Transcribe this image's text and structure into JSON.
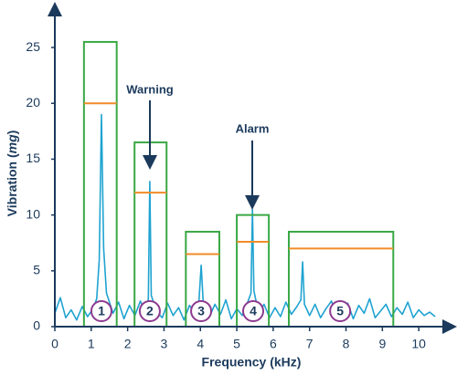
{
  "chart_data": {
    "type": "line",
    "x_label": "Frequency (kHz)",
    "y_label_parts": [
      "Vibration (",
      "mg",
      ")"
    ],
    "xlim": [
      0,
      10.85
    ],
    "ylim": [
      0,
      28.6
    ],
    "xticks": [
      0,
      1,
      2,
      3,
      4,
      5,
      6,
      7,
      8,
      9,
      10
    ],
    "yticks": [
      0,
      5,
      10,
      15,
      20,
      25
    ],
    "series": [
      {
        "color": "#1fa3d1",
        "x": [
          0,
          0.15,
          0.3,
          0.45,
          0.6,
          0.75,
          0.9,
          1.05,
          1.15,
          1.22,
          1.28,
          1.34,
          1.42,
          1.6,
          1.75,
          1.9,
          2.05,
          2.2,
          2.35,
          2.5,
          2.57,
          2.61,
          2.65,
          2.8,
          2.95,
          3.1,
          3.25,
          3.4,
          3.55,
          3.7,
          3.85,
          3.95,
          4.02,
          4.09,
          4.25,
          4.4,
          4.55,
          4.7,
          4.85,
          5.0,
          5.15,
          5.3,
          5.39,
          5.43,
          5.47,
          5.6,
          5.75,
          5.9,
          6.05,
          6.2,
          6.35,
          6.5,
          6.65,
          6.76,
          6.81,
          6.86,
          7.0,
          7.15,
          7.3,
          7.45,
          7.6,
          7.75,
          7.9,
          8.05,
          8.2,
          8.35,
          8.5,
          8.65,
          8.8,
          8.95,
          9.1,
          9.25,
          9.4,
          9.55,
          9.7,
          9.85,
          10.0,
          10.15,
          10.3,
          10.45
        ],
        "values": [
          1.2,
          2.6,
          0.8,
          1.5,
          0.6,
          1.8,
          0.9,
          1.6,
          2.5,
          6,
          19,
          7,
          3,
          1.2,
          2.2,
          0.7,
          1.9,
          1.0,
          2.3,
          1.1,
          2.5,
          13,
          2.8,
          1.3,
          0.8,
          2.1,
          1.0,
          1.7,
          0.6,
          1.9,
          1.2,
          1.8,
          5.5,
          1.5,
          0.9,
          2.0,
          1.1,
          2.4,
          0.7,
          1.6,
          1.0,
          2.2,
          3,
          10.5,
          3.2,
          1.2,
          2.0,
          0.8,
          1.7,
          0.9,
          2.2,
          1.1,
          1.8,
          2.4,
          5.8,
          2.0,
          1.0,
          2.0,
          0.8,
          1.6,
          2.3,
          0.9,
          1.5,
          2.1,
          0.7,
          1.9,
          1.2,
          2.5,
          0.8,
          1.4,
          2.0,
          0.9,
          1.7,
          1.1,
          2.2,
          0.8,
          1.5,
          1.0,
          1.3,
          0.9
        ]
      }
    ],
    "band_color": "#3aa845",
    "threshold_color": "#f28c28",
    "bands": [
      {
        "label": "1",
        "x0": 0.8,
        "x1": 1.7,
        "limit": 25.5,
        "threshold": 20,
        "marker_x": 1.28
      },
      {
        "label": "2",
        "x0": 2.19,
        "x1": 3.07,
        "limit": 16.5,
        "threshold": 12,
        "marker_x": 2.61
      },
      {
        "label": "3",
        "x0": 3.6,
        "x1": 4.52,
        "limit": 8.5,
        "threshold": 6.5,
        "marker_x": 4.02
      },
      {
        "label": "4",
        "x0": 5.0,
        "x1": 5.88,
        "limit": 10,
        "threshold": 7.6,
        "marker_x": 5.45
      },
      {
        "label": "5",
        "x0": 6.43,
        "x1": 9.3,
        "limit": 8.5,
        "threshold": 7,
        "marker_x": 7.84
      }
    ],
    "annotations": [
      "Warning",
      "Alarm"
    ]
  }
}
